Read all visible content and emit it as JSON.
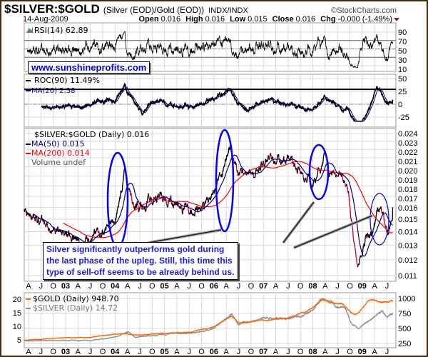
{
  "header": {
    "symbol": "$SILVER:$GOLD",
    "description": "(Silver (EOD)/Gold (EOD))",
    "exchange": "INDX/INDX",
    "copyright": "©StockCharts.com",
    "date": "14-Aug-2009",
    "open_label": "Open",
    "open": "0.016",
    "high_label": "High",
    "high": "0.016",
    "low_label": "Low",
    "low": "0.015",
    "close_label": "Close",
    "close": "0.016",
    "chg_label": "Chg",
    "chg": "-0.000 (-1.49%)"
  },
  "watermark": "www.sunshineprofits.com",
  "annotation": [
    "Silver significantly outperforms gold during",
    "the last phase of the upleg. Still, this time this",
    "type of sell-off seems to be already behind us."
  ],
  "colors": {
    "ma50": "#00008b",
    "ma200": "#ff0000",
    "gold": "#ff6600",
    "silver": "#8c9499",
    "ellipse": "#0000ff",
    "down": "#cc0033"
  },
  "chart_data": [
    {
      "type": "line",
      "title": "RSI(14) 62.89",
      "ylim": [
        0,
        100
      ],
      "yticks": [
        90,
        70,
        50,
        30,
        10
      ],
      "last": 62.89
    },
    {
      "type": "line",
      "title": "ROC(90) 11.49%",
      "series_labels": [
        "ROC(90) 11.49%",
        "MA(20) 2.38"
      ],
      "ylim": [
        -35,
        55
      ],
      "yticks": [
        50,
        25,
        0,
        -25
      ],
      "reference_line": 29
    },
    {
      "type": "line",
      "title": "$SILVER:$GOLD (Daily) 0.016",
      "scale": "log",
      "ylim": [
        0.0107,
        0.0245
      ],
      "yticks": [
        0.024,
        0.023,
        0.022,
        0.021,
        0.02,
        0.019,
        0.018,
        0.017,
        0.016,
        0.015,
        0.014,
        0.013,
        0.012,
        0.011
      ],
      "legend": [
        "$SILVER:$GOLD (Daily) 0.016",
        "MA(50) 0.015",
        "MA(200) 0.014",
        "Volume undef"
      ],
      "x": [
        2002.16,
        2002.5,
        2002.8,
        2003.0,
        2003.3,
        2003.5,
        2003.8,
        2004.0,
        2004.15,
        2004.2,
        2004.35,
        2004.6,
        2004.9,
        2005.2,
        2005.5,
        2005.8,
        2006.0,
        2006.25,
        2006.33,
        2006.5,
        2006.7,
        2006.9,
        2007.1,
        2007.3,
        2007.5,
        2007.7,
        2007.9,
        2008.0,
        2008.15,
        2008.22,
        2008.35,
        2008.5,
        2008.65,
        2008.75,
        2008.85,
        2008.95,
        2009.05,
        2009.2,
        2009.35,
        2009.45,
        2009.52,
        2009.62
      ],
      "values": [
        0.0155,
        0.0148,
        0.0136,
        0.0137,
        0.0131,
        0.0137,
        0.0141,
        0.015,
        0.018,
        0.0195,
        0.0165,
        0.016,
        0.017,
        0.0166,
        0.0158,
        0.016,
        0.017,
        0.0205,
        0.0222,
        0.019,
        0.0186,
        0.0198,
        0.021,
        0.0206,
        0.0201,
        0.0196,
        0.0186,
        0.0182,
        0.0196,
        0.0212,
        0.0194,
        0.0193,
        0.019,
        0.016,
        0.0126,
        0.0119,
        0.0135,
        0.014,
        0.0158,
        0.0146,
        0.014,
        0.016
      ]
    },
    {
      "type": "line",
      "legend": [
        "$GOLD (Daily) 948.70",
        "$SILVER (Daily) 14.72"
      ],
      "ylim_left": [
        5,
        20
      ],
      "yticks_left": [
        20,
        15,
        10,
        5
      ],
      "ylim_right": [
        250,
        1000
      ],
      "yticks_right": [
        1000,
        750,
        500,
        250
      ],
      "gold": {
        "x": [
          2002.16,
          2003.0,
          2003.5,
          2004.0,
          2004.3,
          2004.5,
          2005.0,
          2005.5,
          2006.0,
          2006.35,
          2006.5,
          2007.0,
          2007.5,
          2007.9,
          2008.2,
          2008.5,
          2008.6,
          2008.8,
          2008.9,
          2009.1,
          2009.2,
          2009.4,
          2009.62
        ],
        "values": [
          300,
          345,
          350,
          415,
          400,
          390,
          425,
          430,
          530,
          710,
          590,
          640,
          660,
          800,
          990,
          910,
          900,
          740,
          740,
          920,
          975,
          940,
          948.7
        ]
      },
      "silver": {
        "x": [
          2002.16,
          2003.0,
          2003.5,
          2004.0,
          2004.27,
          2004.4,
          2005.0,
          2005.5,
          2006.0,
          2006.35,
          2006.5,
          2007.0,
          2007.5,
          2007.9,
          2008.2,
          2008.5,
          2008.65,
          2008.8,
          2008.92,
          2009.2,
          2009.4,
          2009.5,
          2009.62
        ],
        "values": [
          4.6,
          4.8,
          4.7,
          6.0,
          8.0,
          5.8,
          7.0,
          7.2,
          9.0,
          14.5,
          10.5,
          13.2,
          12.8,
          14.8,
          19.8,
          17.5,
          16.5,
          10.5,
          9.3,
          13.0,
          15.5,
          13.0,
          14.72
        ]
      }
    },
    {
      "type": "axis",
      "x_ticks": [
        {
          "t": 2002.25,
          "l": "A"
        },
        {
          "t": 2002.5,
          "l": "J"
        },
        {
          "t": 2002.75,
          "l": "O"
        },
        {
          "t": 2003,
          "l": "03"
        },
        {
          "t": 2003.25,
          "l": "A"
        },
        {
          "t": 2003.5,
          "l": "J"
        },
        {
          "t": 2003.75,
          "l": "O"
        },
        {
          "t": 2004,
          "l": "04"
        },
        {
          "t": 2004.25,
          "l": "A"
        },
        {
          "t": 2004.5,
          "l": "J"
        },
        {
          "t": 2004.75,
          "l": "O"
        },
        {
          "t": 2005,
          "l": "05"
        },
        {
          "t": 2005.25,
          "l": "A"
        },
        {
          "t": 2005.5,
          "l": "J"
        },
        {
          "t": 2005.75,
          "l": "O"
        },
        {
          "t": 2006,
          "l": "06"
        },
        {
          "t": 2006.25,
          "l": "A"
        },
        {
          "t": 2006.5,
          "l": "J"
        },
        {
          "t": 2006.75,
          "l": "O"
        },
        {
          "t": 2007,
          "l": "07"
        },
        {
          "t": 2007.25,
          "l": "A"
        },
        {
          "t": 2007.5,
          "l": "J"
        },
        {
          "t": 2007.75,
          "l": "O"
        },
        {
          "t": 2008,
          "l": "08"
        },
        {
          "t": 2008.25,
          "l": "A"
        },
        {
          "t": 2008.5,
          "l": "J"
        },
        {
          "t": 2008.75,
          "l": "O"
        },
        {
          "t": 2009,
          "l": "09"
        },
        {
          "t": 2009.25,
          "l": "A"
        },
        {
          "t": 2009.5,
          "l": "J"
        }
      ]
    }
  ]
}
